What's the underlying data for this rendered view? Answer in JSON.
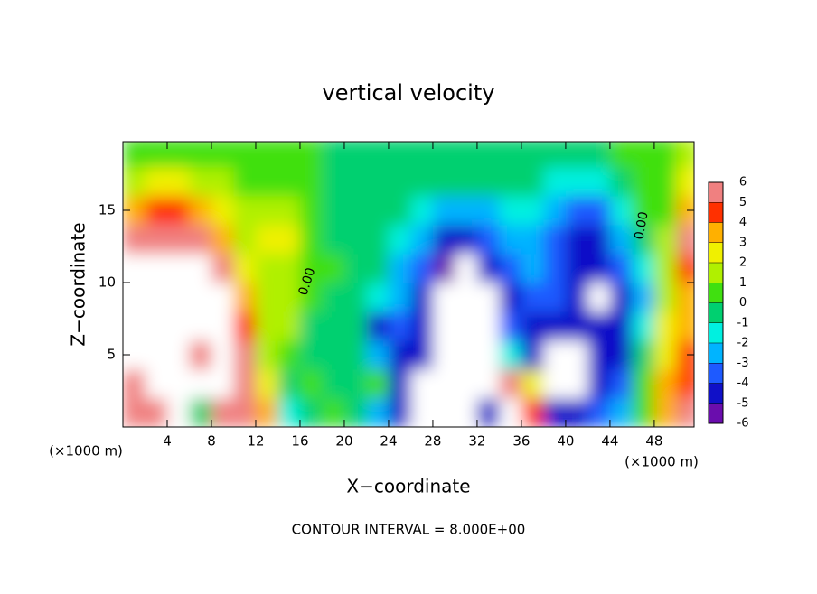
{
  "chart_data": {
    "type": "heatmap",
    "title": "vertical velocity",
    "x_label": "X−coordinate",
    "y_label": "Z−coordinate",
    "x_unit_labels": [
      "(×1000 m)",
      "(×1000 m)"
    ],
    "footer": "CONTOUR INTERVAL = 8.000E+00",
    "contour_labels": [
      "0.00",
      "0.00"
    ],
    "xlim": [
      0,
      51.6
    ],
    "ylim": [
      0,
      19.75
    ],
    "xticks": [
      4,
      8,
      12,
      16,
      20,
      24,
      28,
      32,
      36,
      40,
      44,
      48
    ],
    "yticks": [
      5,
      10,
      15
    ],
    "x": [
      1,
      3,
      5,
      7,
      9,
      11,
      13,
      15,
      17,
      19,
      21,
      23,
      25,
      27,
      29,
      31,
      33,
      35,
      37,
      39,
      41,
      43,
      45,
      47,
      49,
      51
    ],
    "y": [
      1,
      3,
      5,
      7,
      9,
      11,
      13,
      15,
      17,
      19
    ],
    "z": [
      [
        5,
        5,
        8,
        -1,
        5,
        5,
        3,
        -2,
        -1,
        0.5,
        -0.5,
        -3,
        -5,
        -7,
        -7,
        -7,
        -5,
        8,
        4,
        -5,
        -5,
        -4,
        -3,
        0.5,
        3,
        5
      ],
      [
        5,
        8,
        8,
        8,
        8,
        6,
        2,
        -1,
        0.5,
        -0.5,
        -0.5,
        0.5,
        -5,
        -7,
        -7,
        -7,
        -7,
        5,
        2,
        -7,
        -7,
        -5,
        -4,
        0.5,
        3,
        4
      ],
      [
        8,
        8,
        8,
        6,
        8,
        5,
        1,
        0.5,
        -0.5,
        -0.5,
        -0.5,
        -3,
        -5,
        -5,
        -7,
        -7,
        -7,
        -2,
        -5,
        -7,
        -7,
        -5,
        -5,
        -1,
        2,
        4
      ],
      [
        8,
        8,
        8,
        8,
        8,
        4,
        1,
        1,
        -0.3,
        -0.5,
        -1,
        -5,
        -4,
        -5,
        -7,
        -7,
        -7,
        -4,
        -5,
        -5,
        -5,
        -5,
        -5,
        -2,
        2,
        3
      ],
      [
        8,
        8,
        8,
        8,
        8,
        3,
        1,
        1,
        0.3,
        -0.3,
        -1,
        -2,
        -3,
        -5,
        -7,
        -7,
        -7,
        -5,
        -4,
        -4,
        -5,
        -7,
        -5,
        -3,
        1,
        3
      ],
      [
        8,
        8,
        8,
        7,
        5,
        2,
        1,
        1,
        0.5,
        0.3,
        -0.5,
        -1,
        -3,
        -4,
        -6,
        -7,
        -5,
        -4,
        -3,
        -4,
        -5,
        -5,
        -4,
        -2,
        1,
        4
      ],
      [
        5,
        6,
        6,
        5,
        3,
        1,
        2,
        2,
        0.5,
        -0.2,
        -0.5,
        -1,
        -2,
        -3,
        -5,
        -5,
        -4,
        -3,
        -3,
        -4,
        -5,
        -5,
        -3,
        -1,
        1,
        5
      ],
      [
        3,
        4,
        4,
        3,
        2,
        1,
        1,
        1,
        0.5,
        -0.3,
        -0.5,
        -0.5,
        -1,
        -2,
        -3,
        -3,
        -3,
        -2,
        -2,
        -3,
        -4,
        -4,
        -2,
        0.5,
        0.5,
        3
      ],
      [
        1,
        2,
        2,
        1,
        1,
        0.5,
        0.5,
        0.5,
        0.5,
        -0.3,
        -0.3,
        -0.5,
        -0.5,
        -1,
        -1,
        -1,
        -1,
        -1,
        -1,
        -2,
        -2,
        -2,
        -1,
        0.5,
        0.5,
        2
      ],
      [
        0.5,
        0.5,
        0.5,
        0.5,
        0.5,
        0.5,
        0.5,
        0.5,
        0.3,
        -0.2,
        -0.3,
        -0.3,
        -0.3,
        -0.5,
        -0.5,
        -0.5,
        -0.5,
        -0.5,
        -0.5,
        -1,
        -1,
        -1,
        0.5,
        0.5,
        0.5,
        1
      ]
    ],
    "colorbar_ticks": [
      -6,
      -5,
      -4,
      -3,
      -2,
      -1,
      0,
      1,
      2,
      3,
      4,
      5,
      6
    ],
    "colors": [
      "#6a0dad",
      "#1010c8",
      "#1e5aff",
      "#00b4ff",
      "#00f0e0",
      "#00d070",
      "#40e010",
      "#b0f000",
      "#f0f000",
      "#ffb000",
      "#ff3000",
      "#f08080"
    ],
    "out_of_range_color": "#ffffff"
  }
}
